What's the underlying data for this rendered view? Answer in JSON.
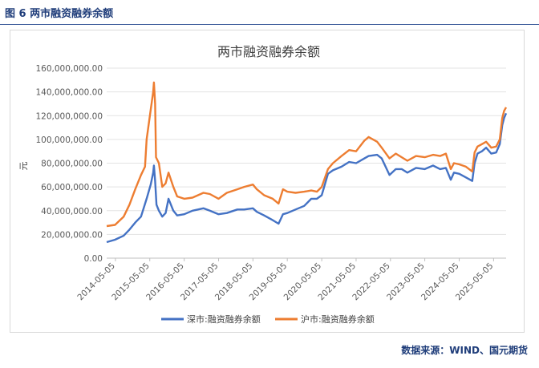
{
  "figure": {
    "title": "图 6  两市融资融券余额",
    "source": "数据来源：WIND、国元期货"
  },
  "colors": {
    "szse": "#4472C4",
    "sse": "#ED7D31"
  },
  "chart_data": {
    "type": "line",
    "title": "两市融资融券余额",
    "ylabel": "元",
    "ylim": [
      0,
      160000000
    ],
    "yticks": [
      0,
      20000000,
      40000000,
      60000000,
      80000000,
      100000000,
      120000000,
      140000000,
      160000000
    ],
    "ytick_labels": [
      "0.00",
      "20,000,000.00",
      "40,000,000.00",
      "60,000,000.00",
      "80,000,000.00",
      "100,000,000.00",
      "120,000,000.00",
      "140,000,000.00",
      "160,000,000.00"
    ],
    "xlim": [
      "2014-02-01",
      "2025-09-15"
    ],
    "xticks": [
      "2014-05-05",
      "2015-05-05",
      "2016-05-05",
      "2017-05-05",
      "2018-05-05",
      "2019-05-05",
      "2020-05-05",
      "2021-05-05",
      "2022-05-05",
      "2023-05-05",
      "2024-05-05",
      "2025-05-05"
    ],
    "grid": true,
    "legend_position": "bottom",
    "series": [
      {
        "name": "深市:融资融券余额",
        "points": [
          [
            "2014-02-01",
            13500000
          ],
          [
            "2014-05-01",
            15500000
          ],
          [
            "2014-08-01",
            19000000
          ],
          [
            "2014-10-01",
            24000000
          ],
          [
            "2014-12-01",
            30000000
          ],
          [
            "2015-02-01",
            35000000
          ],
          [
            "2015-04-01",
            50000000
          ],
          [
            "2015-05-15",
            62000000
          ],
          [
            "2015-06-10",
            72000000
          ],
          [
            "2015-06-18",
            78000000
          ],
          [
            "2015-07-01",
            65000000
          ],
          [
            "2015-07-15",
            45000000
          ],
          [
            "2015-08-10",
            40000000
          ],
          [
            "2015-09-15",
            35000000
          ],
          [
            "2015-10-20",
            38000000
          ],
          [
            "2015-11-20",
            50000000
          ],
          [
            "2016-01-10",
            40000000
          ],
          [
            "2016-02-20",
            36000000
          ],
          [
            "2016-05-05",
            37000000
          ],
          [
            "2016-08-01",
            40000000
          ],
          [
            "2016-11-25",
            42000000
          ],
          [
            "2017-02-01",
            40000000
          ],
          [
            "2017-05-05",
            37000000
          ],
          [
            "2017-08-01",
            38000000
          ],
          [
            "2017-11-20",
            41000000
          ],
          [
            "2018-02-01",
            41000000
          ],
          [
            "2018-05-05",
            42000000
          ],
          [
            "2018-06-15",
            39000000
          ],
          [
            "2018-09-01",
            36000000
          ],
          [
            "2018-12-01",
            32000000
          ],
          [
            "2019-02-01",
            29000000
          ],
          [
            "2019-03-20",
            37000000
          ],
          [
            "2019-05-05",
            38000000
          ],
          [
            "2019-08-01",
            41000000
          ],
          [
            "2019-11-01",
            44000000
          ],
          [
            "2020-01-15",
            50000000
          ],
          [
            "2020-03-15",
            50000000
          ],
          [
            "2020-05-05",
            53000000
          ],
          [
            "2020-07-10",
            71000000
          ],
          [
            "2020-09-01",
            74000000
          ],
          [
            "2020-12-01",
            77000000
          ],
          [
            "2021-02-20",
            81000000
          ],
          [
            "2021-05-05",
            80000000
          ],
          [
            "2021-08-01",
            84000000
          ],
          [
            "2021-09-15",
            86000000
          ],
          [
            "2021-12-15",
            87000000
          ],
          [
            "2022-02-01",
            84000000
          ],
          [
            "2022-04-25",
            70000000
          ],
          [
            "2022-07-01",
            75000000
          ],
          [
            "2022-09-01",
            75000000
          ],
          [
            "2022-11-01",
            72000000
          ],
          [
            "2023-02-01",
            76000000
          ],
          [
            "2023-05-05",
            75000000
          ],
          [
            "2023-08-01",
            78000000
          ],
          [
            "2023-10-15",
            75000000
          ],
          [
            "2023-12-15",
            76000000
          ],
          [
            "2024-02-05",
            66000000
          ],
          [
            "2024-03-10",
            72000000
          ],
          [
            "2024-05-05",
            71000000
          ],
          [
            "2024-07-15",
            68000000
          ],
          [
            "2024-09-20",
            65000000
          ],
          [
            "2024-10-15",
            80000000
          ],
          [
            "2024-11-15",
            88000000
          ],
          [
            "2025-01-01",
            90000000
          ],
          [
            "2025-02-15",
            93000000
          ],
          [
            "2025-04-10",
            88000000
          ],
          [
            "2025-06-01",
            89000000
          ],
          [
            "2025-07-10",
            96000000
          ],
          [
            "2025-08-05",
            112000000
          ],
          [
            "2025-08-25",
            118000000
          ],
          [
            "2025-09-15",
            122000000
          ]
        ]
      },
      {
        "name": "沪市:融资融券余额",
        "points": [
          [
            "2014-02-01",
            27000000
          ],
          [
            "2014-05-01",
            28000000
          ],
          [
            "2014-08-01",
            35000000
          ],
          [
            "2014-10-01",
            45000000
          ],
          [
            "2014-12-01",
            58000000
          ],
          [
            "2015-02-01",
            70000000
          ],
          [
            "2015-03-15",
            77000000
          ],
          [
            "2015-04-01",
            100000000
          ],
          [
            "2015-05-15",
            125000000
          ],
          [
            "2015-06-10",
            140000000
          ],
          [
            "2015-06-18",
            148000000
          ],
          [
            "2015-07-01",
            130000000
          ],
          [
            "2015-07-10",
            85000000
          ],
          [
            "2015-08-10",
            80000000
          ],
          [
            "2015-09-15",
            60000000
          ],
          [
            "2015-10-20",
            63000000
          ],
          [
            "2015-11-20",
            72000000
          ],
          [
            "2016-01-10",
            60000000
          ],
          [
            "2016-02-20",
            52000000
          ],
          [
            "2016-05-05",
            50000000
          ],
          [
            "2016-08-01",
            51000000
          ],
          [
            "2016-11-25",
            55000000
          ],
          [
            "2017-02-01",
            54000000
          ],
          [
            "2017-05-05",
            50000000
          ],
          [
            "2017-08-01",
            55000000
          ],
          [
            "2017-11-20",
            58000000
          ],
          [
            "2018-02-01",
            60000000
          ],
          [
            "2018-05-05",
            62000000
          ],
          [
            "2018-06-15",
            58000000
          ],
          [
            "2018-09-01",
            53000000
          ],
          [
            "2018-12-01",
            50000000
          ],
          [
            "2019-02-01",
            46000000
          ],
          [
            "2019-03-20",
            58000000
          ],
          [
            "2019-05-05",
            56000000
          ],
          [
            "2019-08-01",
            55000000
          ],
          [
            "2019-11-01",
            56000000
          ],
          [
            "2020-01-15",
            57000000
          ],
          [
            "2020-03-15",
            56000000
          ],
          [
            "2020-05-05",
            60000000
          ],
          [
            "2020-07-10",
            75000000
          ],
          [
            "2020-09-01",
            80000000
          ],
          [
            "2020-12-01",
            86000000
          ],
          [
            "2021-02-20",
            91000000
          ],
          [
            "2021-05-05",
            90000000
          ],
          [
            "2021-08-01",
            99000000
          ],
          [
            "2021-09-15",
            102000000
          ],
          [
            "2021-12-15",
            98000000
          ],
          [
            "2022-02-01",
            93000000
          ],
          [
            "2022-04-25",
            84000000
          ],
          [
            "2022-07-01",
            88000000
          ],
          [
            "2022-09-01",
            85000000
          ],
          [
            "2022-11-01",
            82000000
          ],
          [
            "2023-02-01",
            86000000
          ],
          [
            "2023-05-05",
            85000000
          ],
          [
            "2023-08-01",
            87000000
          ],
          [
            "2023-10-15",
            86000000
          ],
          [
            "2023-12-15",
            88000000
          ],
          [
            "2024-02-05",
            75000000
          ],
          [
            "2024-03-10",
            80000000
          ],
          [
            "2024-05-05",
            79000000
          ],
          [
            "2024-07-15",
            77000000
          ],
          [
            "2024-09-20",
            73000000
          ],
          [
            "2024-10-15",
            89000000
          ],
          [
            "2024-11-15",
            94000000
          ],
          [
            "2025-01-01",
            96000000
          ],
          [
            "2025-02-15",
            98000000
          ],
          [
            "2025-04-10",
            93000000
          ],
          [
            "2025-06-01",
            94000000
          ],
          [
            "2025-07-10",
            100000000
          ],
          [
            "2025-08-05",
            118000000
          ],
          [
            "2025-08-25",
            124000000
          ],
          [
            "2025-09-15",
            127000000
          ]
        ]
      }
    ]
  }
}
